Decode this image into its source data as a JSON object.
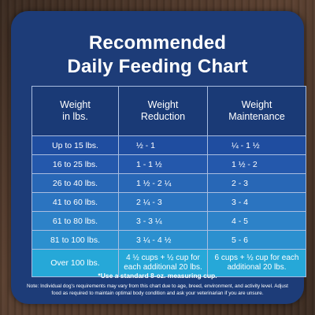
{
  "title": {
    "line1": "Recommended",
    "line2": "Daily Feeding Chart"
  },
  "table": {
    "headers": [
      "Weight\nin lbs.",
      "Weight\nReduction",
      "Weight\nMaintenance"
    ],
    "rows": [
      {
        "weight": "Up to 15 lbs.",
        "reduction": "½ - 1",
        "maintenance": "¼ - 1 ½"
      },
      {
        "weight": "16 to 25 lbs.",
        "reduction": "1 - 1 ½",
        "maintenance": "1 ½ - 2"
      },
      {
        "weight": "26 to 40 lbs.",
        "reduction": "1 ½ - 2 ¼",
        "maintenance": "2 - 3"
      },
      {
        "weight": "41 to 60 lbs.",
        "reduction": "2 ¼ - 3",
        "maintenance": "3 - 4"
      },
      {
        "weight": "61 to 80 lbs.",
        "reduction": "3 - 3 ¼",
        "maintenance": "4 - 5"
      },
      {
        "weight": "81 to 100 lbs.",
        "reduction": "3 ¼ - 4 ½",
        "maintenance": "5 - 6"
      },
      {
        "weight": "Over 100 lbs.",
        "reduction": "4 ½ cups + ½ cup for each additional 20 lbs.",
        "maintenance": "6 cups + ½ cup for each additional 20 lbs."
      }
    ]
  },
  "notes": {
    "measuring": "*Use a standard 8-oz. measuring cup.",
    "detail": "Note: Individual dog's requirements may vary from this chart due to age, breed, environment, and activity level. Adjust food as required to maintain optimal body condition and ask your veterinarian if you are unsure."
  },
  "colors": {
    "card_background": "#1d3c78",
    "header_background": "#1a3a76",
    "row_top": "#1f4da0",
    "row_bottom": "#26a8d8",
    "grid_line": "#a9bde0"
  }
}
